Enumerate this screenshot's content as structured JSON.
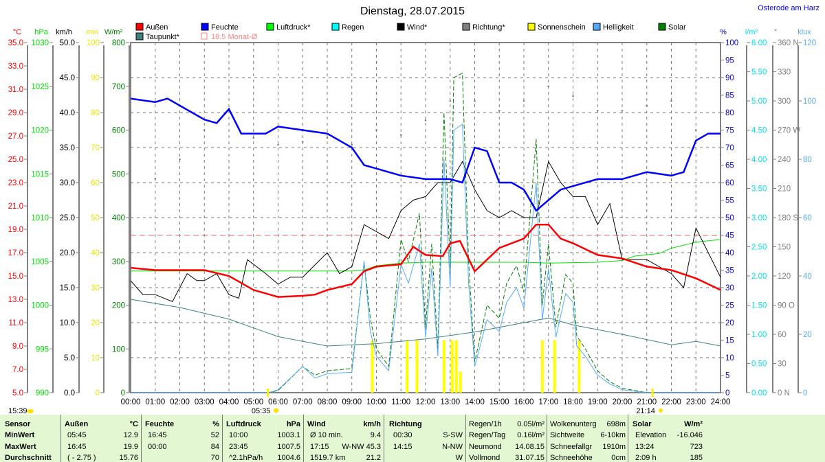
{
  "header": {
    "title": "Dienstag, 28.07.2015",
    "location": "Osterode am Harz"
  },
  "legend": [
    {
      "label": "Außen",
      "color": "#ff0000"
    },
    {
      "label": "Feuchte",
      "color": "#0000ff"
    },
    {
      "label": "Luftdruck*",
      "color": "#00ff00"
    },
    {
      "label": "Regen",
      "color": "#00ffff"
    },
    {
      "label": "Wind*",
      "color": "#000000"
    },
    {
      "label": "Richtung*",
      "color": "#808080"
    },
    {
      "label": "Sonnenschein",
      "color": "#ffff00"
    },
    {
      "label": "Helligkeit",
      "color": "#55aaff"
    },
    {
      "label": "Solar",
      "color": "#008000"
    },
    {
      "label": "Taupunkt*",
      "color": "#408080"
    },
    {
      "label": "18.5 Monat-Ø",
      "color": "#ff8080"
    }
  ],
  "markers": {
    "now": "15:39",
    "sunrise": "05:35",
    "sunset": "21:14"
  },
  "chart_data": {
    "type": "line",
    "title": "Dienstag, 28.07.2015",
    "xlabel": "",
    "xlim": [
      0,
      24
    ],
    "x_ticks": [
      "00:00",
      "01:00",
      "02:00",
      "03:00",
      "04:00",
      "05:00",
      "06:00",
      "07:00",
      "08:00",
      "09:00",
      "10:00",
      "11:00",
      "12:00",
      "13:00",
      "14:00",
      "15:00",
      "16:00",
      "17:00",
      "18:00",
      "19:00",
      "20:00",
      "21:00",
      "22:00",
      "23:00",
      "24:00"
    ],
    "axes": [
      {
        "unit": "°C",
        "range": [
          5,
          35
        ],
        "color": "#ff0000",
        "ticks": [
          "35.0",
          "33.0",
          "31.0",
          "29.0",
          "27.0",
          "25.0",
          "23.0",
          "21.0",
          "19.0",
          "17.0",
          "15.0",
          "13.0",
          "11.0",
          "9.0",
          "7.0",
          "5.0"
        ]
      },
      {
        "unit": "hPa",
        "range": [
          990,
          1030
        ],
        "color": "#00e000",
        "ticks": [
          "1030",
          "1025",
          "1020",
          "1015",
          "1010",
          "1005",
          "1000",
          "995",
          "990"
        ]
      },
      {
        "unit": "km/h",
        "range": [
          0,
          50
        ],
        "color": "#000000",
        "ticks": [
          "50.0",
          "45.0",
          "40.0",
          "35.0",
          "30.0",
          "25.0",
          "20.0",
          "15.0",
          "10.0",
          "5.0",
          "0.0"
        ]
      },
      {
        "unit": "min",
        "range": [
          0,
          100
        ],
        "color": "#e8e800",
        "ticks": [
          "100",
          "90",
          "80",
          "70",
          "60",
          "50",
          "40",
          "30",
          "20",
          "10",
          "0"
        ]
      },
      {
        "unit": "W/m²",
        "range": [
          0,
          800
        ],
        "color": "#008000",
        "ticks": [
          "800",
          "700",
          "600",
          "500",
          "400",
          "300",
          "200",
          "100",
          "0"
        ]
      },
      {
        "unit": "%",
        "range": [
          0,
          100
        ],
        "color": "#0000cc",
        "ticks": [
          "100",
          "95",
          "90",
          "85",
          "80",
          "75",
          "70",
          "65",
          "60",
          "55",
          "50",
          "45",
          "40",
          "35",
          "30",
          "25",
          "20",
          "15",
          "10",
          "5",
          "0"
        ]
      },
      {
        "unit": "l/m²",
        "range": [
          0,
          6
        ],
        "color": "#00e0f0",
        "ticks": [
          "6.00",
          "5.50",
          "5.00",
          "4.50",
          "4.00",
          "3.50",
          "3.00",
          "2.50",
          "2.00",
          "1.50",
          "1.00",
          "0.50",
          "0.00"
        ]
      },
      {
        "unit": "°",
        "range": [
          0,
          360
        ],
        "color": "#808080",
        "ticks": [
          "360 N",
          "330",
          "300",
          "270 W",
          "240",
          "210",
          "180 S",
          "150",
          "120",
          "90  O",
          "60",
          "30",
          "0    N"
        ]
      },
      {
        "unit": "klux",
        "range": [
          0,
          120
        ],
        "color": "#55aaff",
        "ticks": [
          "120",
          "100",
          "80",
          "60",
          "40",
          "20",
          "0"
        ]
      }
    ],
    "reference_line": {
      "label": "18.5 Monat-Ø",
      "value": 18.5,
      "axis": "°C"
    },
    "series": [
      {
        "name": "Außen",
        "axis": "°C",
        "color": "#ff0000",
        "x": [
          0,
          1,
          2,
          3,
          4,
          5,
          6,
          7,
          7.5,
          8,
          9,
          9.5,
          10,
          11,
          11.5,
          12,
          12.7,
          13,
          13.4,
          14,
          15,
          16,
          16.5,
          17,
          17.5,
          18,
          19,
          20,
          21,
          22,
          23,
          24
        ],
        "y": [
          15.7,
          15.5,
          15.5,
          15.5,
          15.0,
          13.8,
          13.2,
          13.3,
          13.4,
          13.8,
          14.3,
          15.4,
          15.8,
          16.0,
          17.5,
          16.8,
          16.7,
          17.8,
          18.0,
          15.4,
          17.4,
          18.2,
          19.4,
          19.4,
          18.2,
          17.8,
          16.8,
          16.5,
          15.8,
          15.5,
          14.8,
          13.8
        ]
      },
      {
        "name": "Feuchte",
        "axis": "%",
        "color": "#0000ff",
        "x": [
          0,
          1,
          1.5,
          2,
          2.5,
          3,
          3.5,
          4,
          4.5,
          5,
          5.5,
          6,
          7,
          8,
          9,
          9.5,
          10,
          11,
          12,
          13,
          13.5,
          14,
          14.5,
          15,
          15.5,
          16,
          16.5,
          17,
          17.5,
          18,
          19,
          20,
          21,
          22,
          22.5,
          23,
          23.5,
          24
        ],
        "y": [
          84,
          83,
          84,
          82,
          80,
          78,
          77,
          81,
          74,
          74,
          74,
          76,
          75,
          74,
          70,
          65,
          64,
          62,
          61,
          61,
          60,
          70,
          69,
          60,
          60,
          58,
          52,
          55,
          58,
          59,
          61,
          61,
          63,
          62,
          63,
          72,
          74,
          74
        ]
      },
      {
        "name": "Luftdruck*",
        "axis": "hPa",
        "color": "#00e000",
        "x": [
          0,
          5,
          9,
          9.5,
          10,
          11,
          12,
          14,
          16,
          17,
          19,
          20,
          20.5,
          21.5,
          22,
          23,
          24
        ],
        "y": [
          1003.9,
          1003.9,
          1003.9,
          1004.0,
          1004.5,
          1004.8,
          1004.9,
          1004.9,
          1004.9,
          1004.8,
          1004.9,
          1005.1,
          1005.6,
          1005.9,
          1006.5,
          1007.2,
          1007.5
        ]
      },
      {
        "name": "Taupunkt*",
        "axis": "°C",
        "color": "#408080",
        "x": [
          0,
          2,
          4,
          6,
          8,
          10,
          12,
          14,
          16,
          17,
          18,
          20,
          22,
          23,
          24
        ],
        "y": [
          13.0,
          12.3,
          11.3,
          9.8,
          9.0,
          9.2,
          9.6,
          10.2,
          11.0,
          11.4,
          10.8,
          10.0,
          9.1,
          9.4,
          9.0
        ]
      },
      {
        "name": "Wind*",
        "axis": "km/h",
        "color": "#000000",
        "x": [
          0,
          0.5,
          1,
          1.7,
          2.3,
          2.7,
          3,
          3.5,
          4,
          4.4,
          4.75,
          5.5,
          6,
          6.5,
          7,
          8,
          8.5,
          9,
          9.5,
          10,
          10.5,
          11,
          11.5,
          12,
          12.5,
          13,
          13.5,
          14,
          14.5,
          15,
          15.5,
          16,
          16.5,
          17,
          17.5,
          18,
          18.5,
          19,
          19.5,
          20,
          20.5,
          21,
          22,
          22.5,
          23,
          24
        ],
        "y": [
          16,
          14,
          14,
          13,
          17,
          16,
          16,
          17,
          14,
          13.5,
          19,
          17,
          15.5,
          16.5,
          16.5,
          20,
          17,
          18,
          24,
          23,
          22,
          26,
          27.5,
          28,
          30,
          30,
          33,
          29,
          26,
          25,
          26,
          25,
          25,
          33,
          30,
          28,
          28,
          24,
          27,
          19,
          19,
          19,
          17,
          15,
          23.5,
          16.5
        ]
      },
      {
        "name": "Richtung*",
        "axis": "°",
        "color": "#808080",
        "style": "dots",
        "x": [
          0,
          1,
          2,
          3,
          4,
          5,
          6,
          7,
          8,
          9,
          10,
          11,
          12,
          13,
          14,
          15,
          16,
          17,
          18,
          19,
          20,
          21,
          22,
          23,
          24
        ],
        "y": [
          227,
          220,
          240,
          270,
          290,
          262,
          255,
          258,
          262,
          255,
          270,
          265,
          280,
          300,
          300,
          290,
          300,
          315,
          305,
          290,
          290,
          295,
          300,
          270,
          245
        ]
      },
      {
        "name": "Solar",
        "axis": "W/m²",
        "color": "#008000",
        "x": [
          0,
          5.6,
          6,
          7,
          7.5,
          8,
          9,
          9.5,
          9.75,
          10,
          10.5,
          11,
          11.3,
          11.75,
          12,
          12.25,
          12.5,
          12.75,
          13,
          13.15,
          13.5,
          13.75,
          14,
          14.5,
          15,
          15.3,
          15.7,
          16,
          16.5,
          16.75,
          17,
          17.3,
          17.7,
          18,
          18.15,
          18.5,
          19,
          19.5,
          20,
          21,
          24
        ],
        "y": [
          0,
          0,
          5,
          60,
          40,
          50,
          55,
          300,
          170,
          100,
          60,
          350,
          300,
          410,
          150,
          340,
          100,
          640,
          290,
          720,
          730,
          300,
          70,
          200,
          170,
          250,
          290,
          230,
          580,
          200,
          340,
          150,
          270,
          250,
          130,
          100,
          50,
          25,
          10,
          0,
          0
        ]
      },
      {
        "name": "Helligkeit",
        "axis": "klux",
        "color": "#55aaff",
        "x": [
          0,
          5.6,
          6,
          7,
          7.5,
          8,
          9,
          9.5,
          9.75,
          10,
          10.5,
          11,
          11.3,
          11.75,
          12,
          12.25,
          12.5,
          12.75,
          13,
          13.15,
          13.5,
          13.75,
          14,
          14.5,
          15,
          15.3,
          15.7,
          16,
          16.5,
          16.75,
          17,
          17.3,
          17.7,
          18,
          18.15,
          18.5,
          19,
          19.5,
          20,
          21,
          24
        ],
        "y": [
          0,
          0,
          1,
          9,
          5,
          6.5,
          7,
          45,
          21,
          12.5,
          7.5,
          44,
          37.5,
          51,
          19,
          42.5,
          12.5,
          80,
          36,
          90,
          92,
          37.5,
          9,
          25,
          21,
          31,
          36,
          29,
          72,
          25,
          42.5,
          19,
          34,
          31,
          16,
          12.5,
          6,
          3,
          1,
          0,
          0
        ]
      },
      {
        "name": "Sonnenschein",
        "axis": "min",
        "color": "#ffff00",
        "style": "bars",
        "x": [
          9.83,
          11.25,
          11.65,
          12.75,
          13.08,
          13.25,
          13.42,
          16.75,
          17.25,
          18.25
        ],
        "y": [
          15,
          15,
          15,
          15,
          15,
          15,
          6,
          15,
          15,
          15
        ]
      }
    ]
  },
  "table": {
    "sensor": {
      "head": "Sensor",
      "rows": [
        "MinWert",
        "MaxWert",
        "Durchschnitt"
      ]
    },
    "aussen": {
      "head": "Außen",
      "unit": "°C",
      "rows": [
        [
          "05:45",
          "12.9"
        ],
        [
          "16:45",
          "19.9"
        ],
        [
          "( - 2.75 )",
          "15.76"
        ]
      ]
    },
    "feuchte": {
      "head": "Feuchte",
      "unit": "%",
      "rows": [
        [
          "16:45",
          "52"
        ],
        [
          "00:00",
          "84"
        ],
        [
          "",
          "70"
        ]
      ]
    },
    "luftdruck": {
      "head": "Luftdruck",
      "unit": "hPa",
      "rows": [
        [
          "10:00",
          "1003.1"
        ],
        [
          "23:45",
          "1007.5"
        ],
        [
          "^2.1hPa/h",
          "1004.6"
        ]
      ]
    },
    "wind": {
      "head": "Wind",
      "unit": "km/h",
      "rows": [
        [
          "Ø 10 min.",
          "9.4"
        ],
        [
          "17:15",
          "W-NW 45.3"
        ],
        [
          "1519.7 km",
          "21.2"
        ]
      ]
    },
    "richtung": {
      "head": "Richtung",
      "rows": [
        [
          "00:30",
          "S-SW"
        ],
        [
          "14:15",
          "N-NW"
        ],
        [
          "",
          "W"
        ]
      ]
    },
    "regen": {
      "rows": [
        [
          "Regen/1h",
          "0.05l/m²"
        ],
        [
          "Regen/Tag",
          "0.16l/m²"
        ],
        [
          "Neumond",
          "14.08.15"
        ],
        [
          "Vollmond",
          "31.07.15"
        ]
      ]
    },
    "wolken": {
      "rows": [
        [
          "Wolkenunterg",
          "698m"
        ],
        [
          "Sichtweite",
          "6-10km"
        ],
        [
          "Schneefallgr",
          "1910m"
        ],
        [
          "Schneehöhe",
          "0cm"
        ]
      ]
    },
    "solar": {
      "head": "Solar",
      "unit": "W/m²",
      "rows": [
        [
          "Elevation",
          "-16.046"
        ],
        [
          "13:24",
          "723"
        ],
        [
          "2:09 h",
          "185"
        ]
      ]
    }
  }
}
